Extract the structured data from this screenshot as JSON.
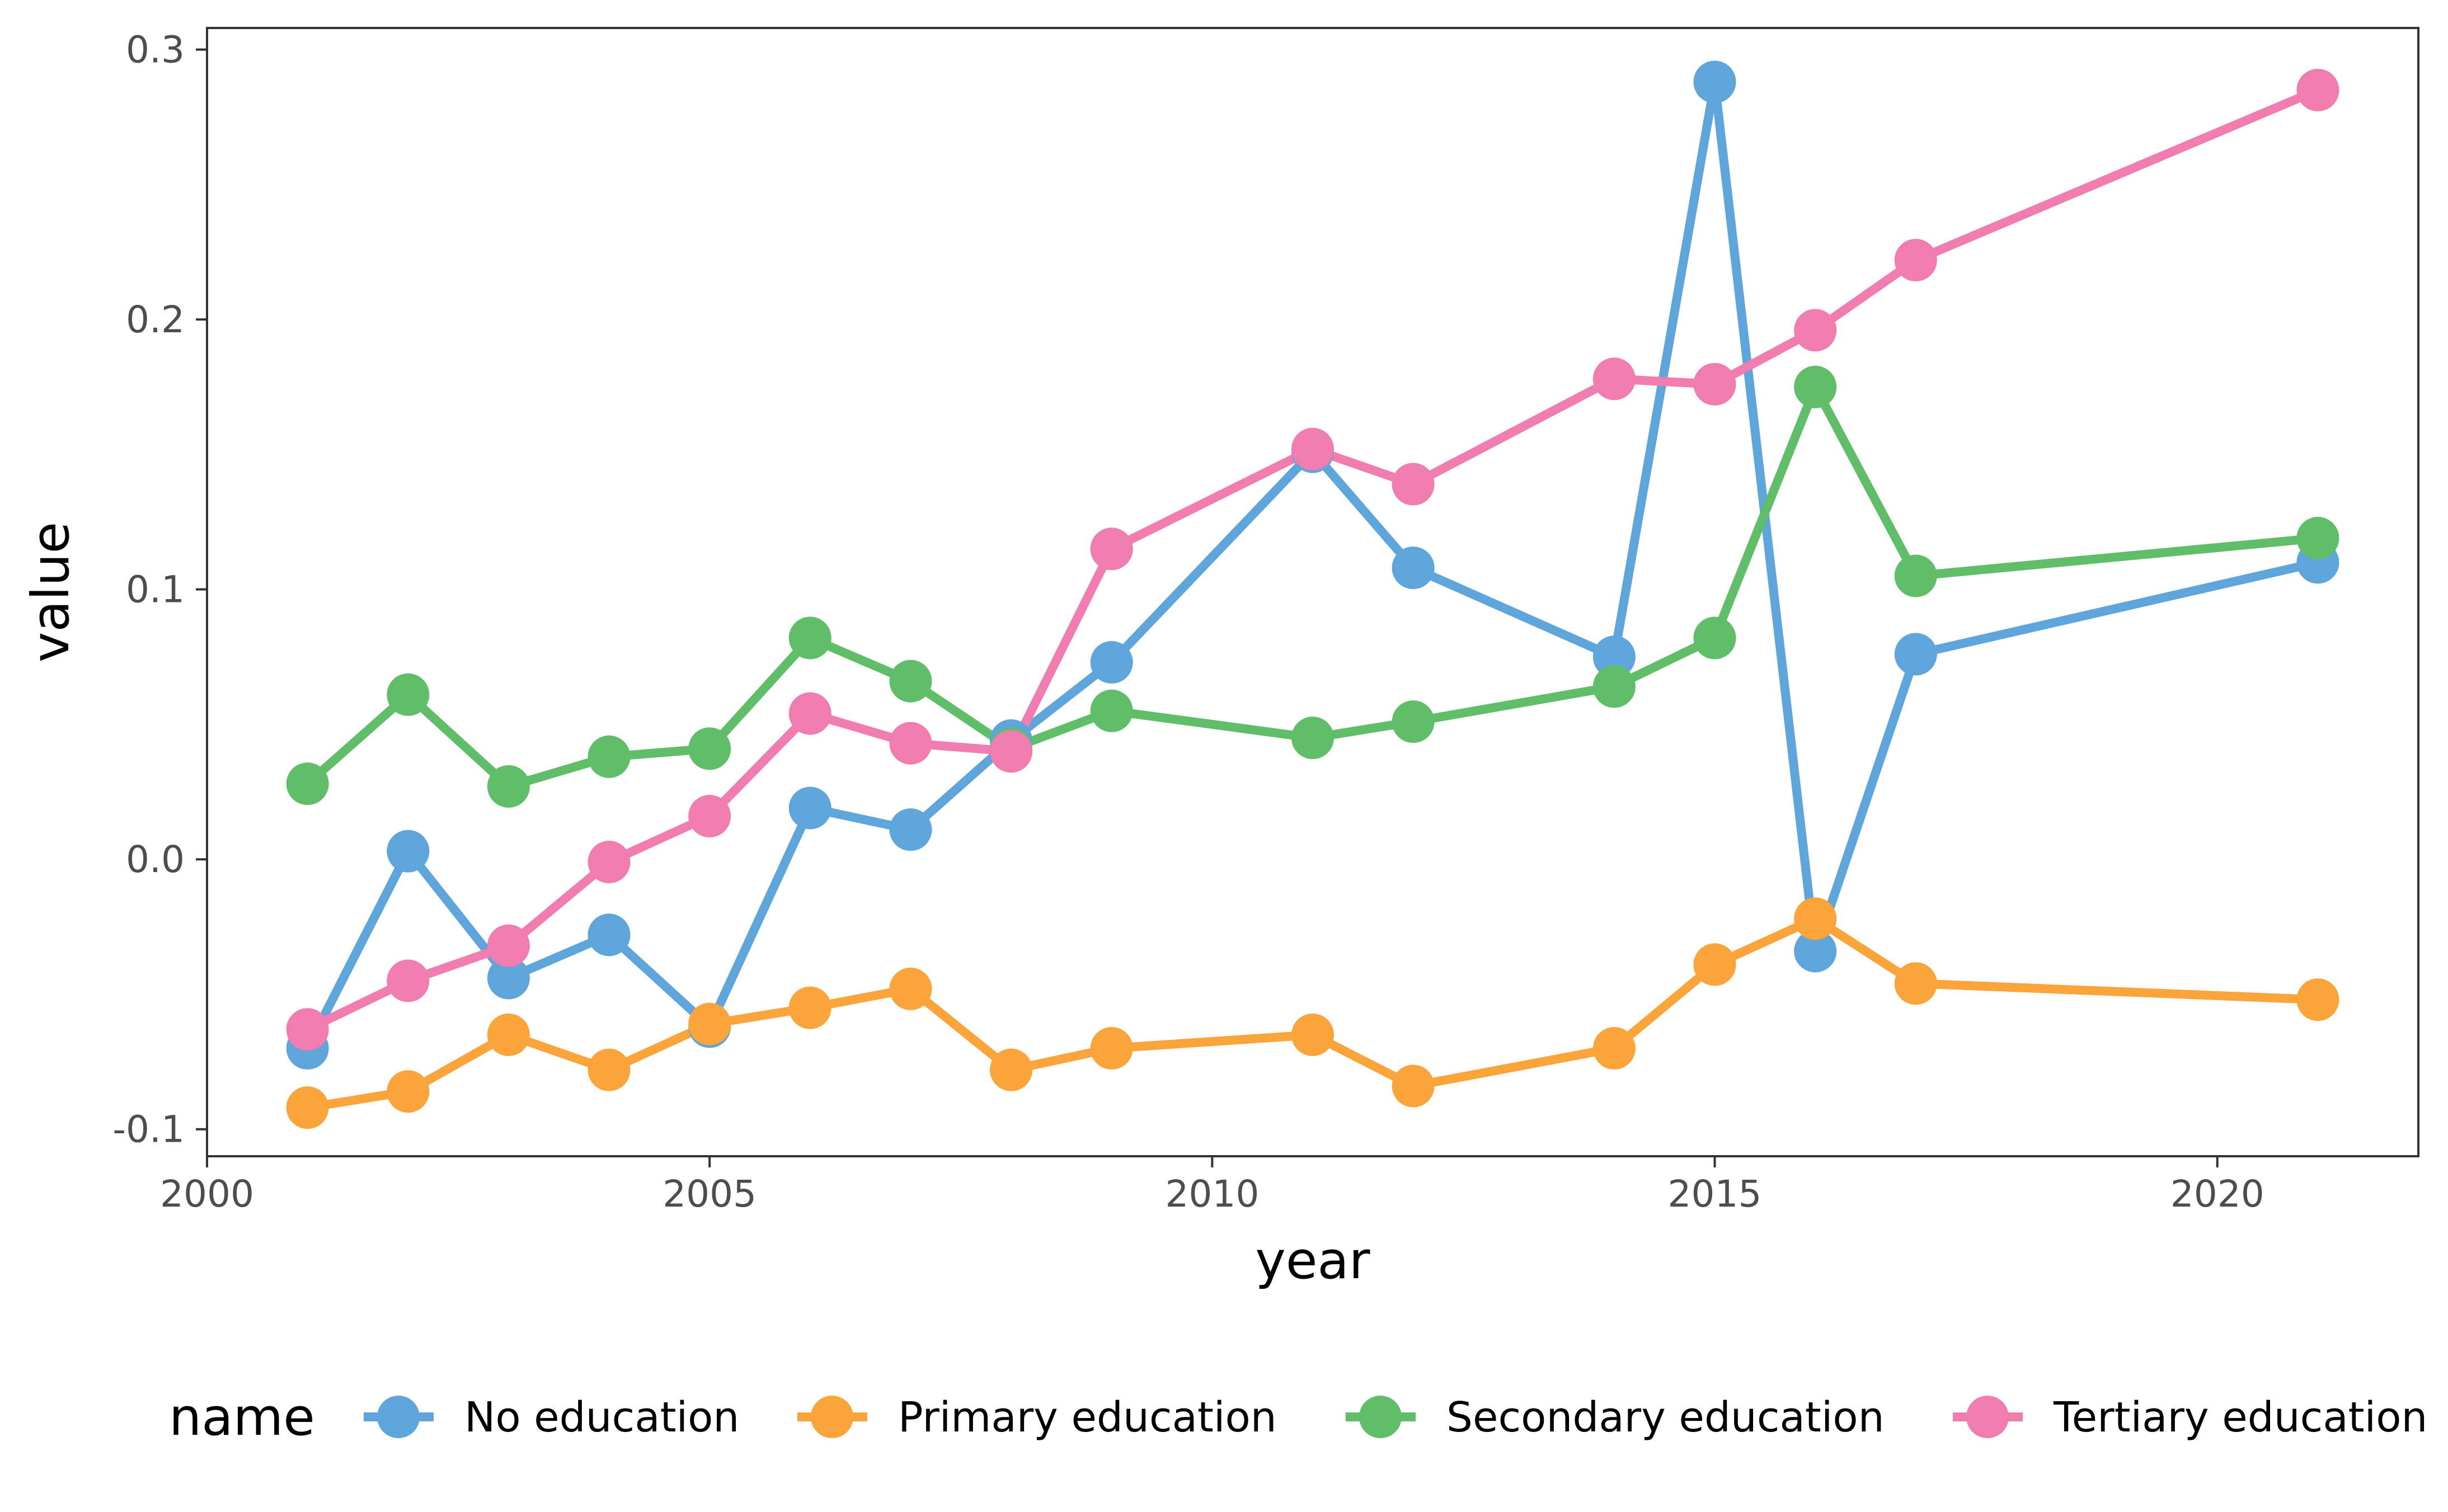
{
  "chart_data": {
    "type": "line",
    "xlabel": "year",
    "ylabel": "value",
    "xlim": [
      2000,
      2022
    ],
    "ylim": [
      -0.11,
      0.308
    ],
    "x_ticks": [
      2000,
      2005,
      2010,
      2015,
      2020
    ],
    "x_tick_labels": [
      "2000",
      "2005",
      "2010",
      "2015",
      "2020"
    ],
    "y_ticks": [
      -0.1,
      0.0,
      0.1,
      0.2,
      0.3
    ],
    "y_tick_labels": [
      "-0.1",
      "0.0",
      "0.1",
      "0.2",
      "0.3"
    ],
    "grid": false,
    "legend": {
      "title": "name",
      "position": "bottom"
    },
    "series": [
      {
        "name": "No education",
        "color": "#5da5da",
        "x": [
          2001,
          2002,
          2003,
          2004,
          2005,
          2006,
          2007,
          2008,
          2009,
          2011,
          2012,
          2014,
          2015,
          2016,
          2017,
          2021
        ],
        "values": [
          -0.07,
          0.003,
          -0.044,
          -0.028,
          -0.062,
          0.019,
          0.011,
          0.044,
          0.073,
          0.151,
          0.108,
          0.075,
          0.288,
          -0.034,
          0.076,
          0.11
        ]
      },
      {
        "name": "Primary education",
        "color": "#faa43a",
        "x": [
          2001,
          2002,
          2003,
          2004,
          2005,
          2006,
          2007,
          2008,
          2009,
          2011,
          2012,
          2014,
          2015,
          2016,
          2017,
          2021
        ],
        "values": [
          -0.092,
          -0.086,
          -0.065,
          -0.078,
          -0.061,
          -0.055,
          -0.048,
          -0.078,
          -0.07,
          -0.065,
          -0.084,
          -0.07,
          -0.039,
          -0.022,
          -0.046,
          -0.052
        ]
      },
      {
        "name": "Secondary education",
        "color": "#60bd68",
        "x": [
          2001,
          2002,
          2003,
          2004,
          2005,
          2006,
          2007,
          2008,
          2009,
          2011,
          2012,
          2014,
          2015,
          2016,
          2017,
          2021
        ],
        "values": [
          0.028,
          0.061,
          0.027,
          0.038,
          0.041,
          0.082,
          0.066,
          0.041,
          0.055,
          0.045,
          0.051,
          0.064,
          0.082,
          0.175,
          0.105,
          0.119
        ]
      },
      {
        "name": "Tertiary education",
        "color": "#f17cb0",
        "x": [
          2001,
          2002,
          2003,
          2004,
          2005,
          2006,
          2007,
          2008,
          2009,
          2011,
          2012,
          2014,
          2015,
          2016,
          2017,
          2021
        ],
        "values": [
          -0.063,
          -0.045,
          -0.032,
          -0.001,
          0.016,
          0.054,
          0.043,
          0.04,
          0.115,
          0.152,
          0.139,
          0.178,
          0.176,
          0.196,
          0.222,
          0.285
        ]
      }
    ]
  },
  "colors": {
    "axis": "#333333",
    "tick_text": "#4d4d4d",
    "background": "#ffffff"
  }
}
